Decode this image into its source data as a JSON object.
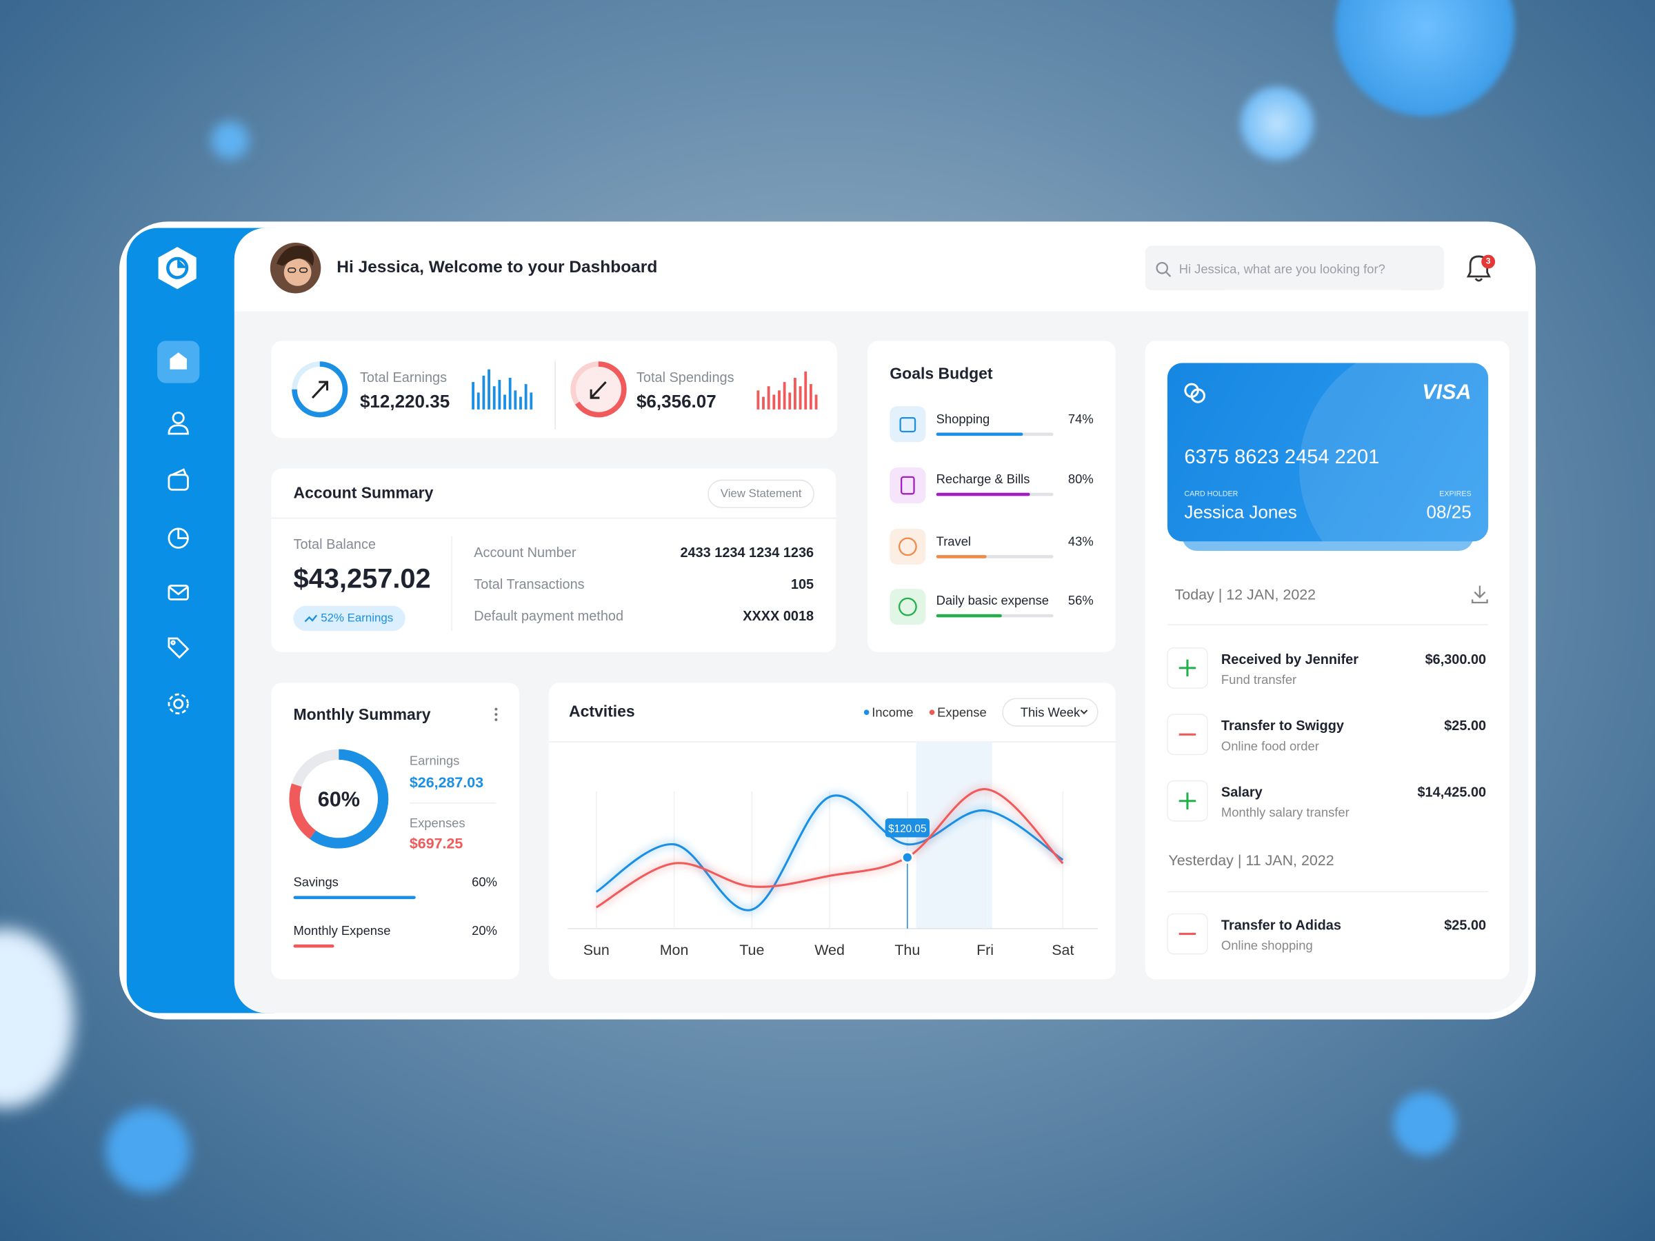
{
  "header": {
    "greeting": "Hi Jessica, Welcome to your Dashboard",
    "search_placeholder": "Hi Jessica, what are you looking for?",
    "notifications": "3"
  },
  "summary": {
    "earnings": {
      "label": "Total Earnings",
      "amount": "$12,220.35"
    },
    "spendings": {
      "label": "Total Spendings",
      "amount": "$6,356.07"
    }
  },
  "account": {
    "title": "Account Summary",
    "button": "View Statement",
    "balance_label": "Total Balance",
    "balance": "$43,257.02",
    "badge": "52% Earnings",
    "details": [
      [
        "Account Number",
        "2433 1234 1234 1236"
      ],
      [
        "Total Transactions",
        "105"
      ],
      [
        "Default payment method",
        "XXXX 0018"
      ]
    ]
  },
  "goals": {
    "title": "Goals Budget",
    "items": [
      {
        "name": "Shopping",
        "value": 74,
        "label": "74%",
        "color": "#1a8fe3"
      },
      {
        "name": "Recharge & Bills",
        "value": 80,
        "label": "80%",
        "color": "#a31fc2"
      },
      {
        "name": "Travel",
        "value": 43,
        "label": "43%",
        "color": "#f08a4b"
      },
      {
        "name": "Daily basic expense",
        "value": 56,
        "label": "56%",
        "color": "#22b04b"
      }
    ]
  },
  "monthly": {
    "title": "Monthly Summary",
    "donut_label": "60%",
    "earnings_label": "Earnings",
    "earnings": "$26,287.03",
    "expenses_label": "Expenses",
    "expenses": "$697.25",
    "bars": [
      {
        "name": "Savings",
        "value": 60,
        "label": "60%",
        "color": "#1a8fe3"
      },
      {
        "name": "Monthly Expense",
        "value": 20,
        "label": "20%",
        "color": "#f05a5a"
      }
    ]
  },
  "chart_data": {
    "type": "line",
    "title": "Actvities",
    "filter": "This Week",
    "categories": [
      "Sun",
      "Mon",
      "Tue",
      "Wed",
      "Thu",
      "Fri",
      "Sat"
    ],
    "series": [
      {
        "name": "Income",
        "color": "#1a8fe3",
        "values": [
          62,
          142,
          32,
          222,
          142,
          199,
          116
        ]
      },
      {
        "name": "Expense",
        "color": "#f05a5a",
        "values": [
          36,
          110,
          71,
          89,
          120.05,
          235,
          110
        ]
      }
    ],
    "ylim": [
      0,
      320
    ],
    "annotation": {
      "text": "$120.05",
      "series": 1,
      "index": 4
    }
  },
  "card": {
    "brand": "VISA",
    "number": "6375 8623 2454 2201",
    "holder_label": "CARD HOLDER",
    "holder": "Jessica Jones",
    "expires_label": "EXPIRES",
    "expires": "08/25"
  },
  "transactions": {
    "groups": [
      {
        "date": "Today | 12 JAN, 2022",
        "items": [
          {
            "title": "Received by Jennifer",
            "subtitle": "Fund transfer",
            "amount": "$6,300.00",
            "direction": "in"
          },
          {
            "title": "Transfer to Swiggy",
            "subtitle": "Online food order",
            "amount": "$25.00",
            "direction": "out"
          },
          {
            "title": "Salary",
            "subtitle": "Monthly salary transfer",
            "amount": "$14,425.00",
            "direction": "in"
          }
        ]
      },
      {
        "date": "Yesterday | 11 JAN, 2022",
        "items": [
          {
            "title": "Transfer to Adidas",
            "subtitle": "Online shopping",
            "amount": "$25.00",
            "direction": "out"
          }
        ]
      }
    ]
  }
}
